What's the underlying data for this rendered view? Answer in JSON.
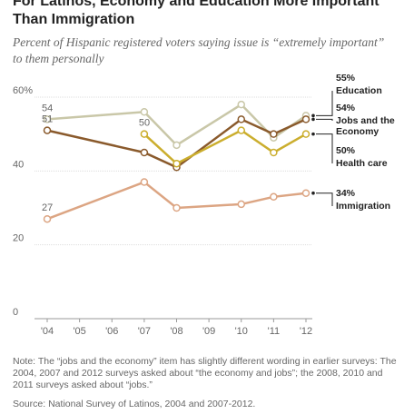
{
  "chart_data": {
    "type": "line",
    "title": "For Latinos, Economy and Education More Important Than Immigration",
    "subtitle": "Percent of Hispanic registered voters saying issue is “extremely important” to them personally",
    "x": [
      4,
      7,
      8,
      10,
      11,
      12
    ],
    "xlim": [
      4,
      12
    ],
    "xticks": [
      {
        "value": 4,
        "label": "'04"
      },
      {
        "value": 5,
        "label": "'05"
      },
      {
        "value": 6,
        "label": "'06"
      },
      {
        "value": 7,
        "label": "'07"
      },
      {
        "value": 8,
        "label": "'08"
      },
      {
        "value": 9,
        "label": "'09"
      },
      {
        "value": 10,
        "label": "'10"
      },
      {
        "value": 11,
        "label": "'11"
      },
      {
        "value": 12,
        "label": "'12"
      }
    ],
    "ylim": [
      0,
      60
    ],
    "yticks": [
      0,
      20,
      40,
      {
        "value": 60,
        "label": "60%"
      }
    ],
    "grid": true,
    "series": [
      {
        "name": "Education",
        "color": "#c9c7a8",
        "values": [
          54,
          56,
          47,
          58,
          49,
          55
        ],
        "value_labels": [
          "54",
          null,
          null,
          null,
          null,
          "55%"
        ]
      },
      {
        "name": "Jobs and the Economy",
        "color": "#8a5a2c",
        "values": [
          51,
          45,
          41,
          54,
          50,
          54
        ],
        "value_labels": [
          "51",
          null,
          null,
          null,
          null,
          "54%"
        ]
      },
      {
        "name": "Health care",
        "color": "#cbae2e",
        "values": [
          null,
          50,
          42,
          51,
          45,
          50
        ],
        "value_labels": [
          null,
          "50",
          null,
          null,
          null,
          "50%"
        ]
      },
      {
        "name": "Immigration",
        "color": "#dca583",
        "values": [
          27,
          37,
          30,
          31,
          33,
          34
        ],
        "value_labels": [
          "27",
          null,
          null,
          null,
          null,
          "34%"
        ]
      }
    ],
    "note": "Note: The “jobs and the economy” item has slightly different wording in earlier surveys: The 2004, 2007 and 2012 surveys asked about “the economy and jobs”; the 2008, 2010 and 2011 surveys asked about “jobs.”",
    "source": "Source: National Survey of Latinos, 2004 and 2007-2012."
  }
}
